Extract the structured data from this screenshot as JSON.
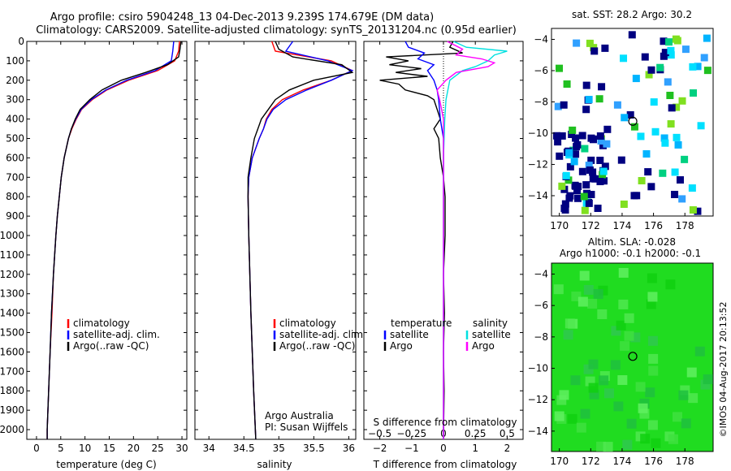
{
  "titles": {
    "line1": "Argo profile: csiro 5904248_13 04-Dec-2013 9.239S 174.679E (DM data)",
    "line2": "Climatology: CARS2009. Satellite-adjusted climatology: synTS_20131204.nc (0.95d earlier)"
  },
  "colors": {
    "climatology": "#ff0000",
    "satellite": "#0000ff",
    "argo": "#000000",
    "sat_s": "#00e0e0",
    "argo_s": "#ff00ff"
  },
  "chart_data": [
    {
      "type": "line",
      "name": "temperature",
      "xlabel": "temperature (deg C)",
      "xlim": [
        -2,
        31
      ],
      "ylim": [
        0,
        2050
      ],
      "xticks": [
        0,
        5,
        10,
        15,
        20,
        25,
        30
      ],
      "yticks": [
        0,
        100,
        200,
        300,
        400,
        500,
        600,
        700,
        800,
        900,
        1000,
        1100,
        1200,
        1300,
        1400,
        1500,
        1600,
        1700,
        1800,
        1900,
        2000
      ],
      "legend": [
        "climatology",
        "satellite-adj. clim.",
        "Argo(..raw -QC)"
      ],
      "series": [
        {
          "name": "climatology",
          "depth": [
            0,
            50,
            100,
            150,
            200,
            250,
            300,
            350,
            400,
            450,
            500,
            600,
            700,
            800,
            900,
            1000,
            1200,
            1400,
            1600,
            1800,
            2000,
            2050
          ],
          "values": [
            29.5,
            29.3,
            28.5,
            25,
            19,
            14.5,
            11.5,
            9.3,
            8.2,
            7.3,
            6.6,
            5.7,
            5.1,
            4.7,
            4.3,
            4.0,
            3.5,
            3.2,
            2.8,
            2.5,
            2.2,
            2.2
          ]
        },
        {
          "name": "satellite",
          "depth": [
            0,
            50,
            100,
            150,
            200,
            250,
            300,
            350,
            400,
            450,
            500,
            600,
            700,
            800,
            900,
            1000,
            1200,
            1400,
            1600,
            1800,
            2000,
            2050
          ],
          "values": [
            28.3,
            28.1,
            27.8,
            24.5,
            18.6,
            14.3,
            11.3,
            9.2,
            8.1,
            7.2,
            6.6,
            5.7,
            5.1,
            4.7,
            4.3,
            4.0,
            3.5,
            3.1,
            2.8,
            2.5,
            2.2,
            2.2
          ]
        },
        {
          "name": "Argo",
          "depth": [
            0,
            40,
            80,
            120,
            160,
            200,
            250,
            300,
            350,
            400,
            450,
            500,
            600,
            700,
            800,
            900,
            1000,
            1200,
            1400,
            1600,
            1800,
            2000,
            2050
          ],
          "values": [
            29.8,
            29.6,
            29.3,
            27,
            22.5,
            17.5,
            13.5,
            11.0,
            9.0,
            8.0,
            7.2,
            6.6,
            5.7,
            5.1,
            4.7,
            4.3,
            4.0,
            3.5,
            3.1,
            2.8,
            2.5,
            2.2,
            2.2
          ]
        }
      ]
    },
    {
      "type": "line",
      "name": "salinity",
      "xlabel": "salinity",
      "xlim": [
        33.8,
        36.1
      ],
      "ylim": [
        0,
        2050
      ],
      "xticks": [
        34,
        34.5,
        35,
        35.5,
        36
      ],
      "legend": [
        "climatology",
        "satellite-adj. clim.",
        "Argo(..raw -QC)"
      ],
      "series": [
        {
          "name": "climatology",
          "depth": [
            0,
            50,
            100,
            150,
            200,
            250,
            300,
            350,
            400,
            450,
            500,
            600,
            700,
            800,
            1000,
            1400,
            1800,
            2050
          ],
          "values": [
            34.9,
            34.95,
            35.75,
            36.05,
            35.75,
            35.35,
            35.05,
            34.9,
            34.82,
            34.78,
            34.72,
            34.62,
            34.57,
            34.56,
            34.57,
            34.6,
            34.64,
            34.67
          ]
        },
        {
          "name": "satellite",
          "depth": [
            0,
            50,
            100,
            150,
            200,
            250,
            300,
            350,
            400,
            450,
            500,
            600,
            700,
            800,
            1000,
            1400,
            1800,
            2050
          ],
          "values": [
            35.2,
            35.1,
            35.7,
            36.05,
            35.75,
            35.4,
            35.1,
            34.92,
            34.83,
            34.78,
            34.72,
            34.62,
            34.57,
            34.56,
            34.57,
            34.6,
            34.64,
            34.67
          ]
        },
        {
          "name": "Argo",
          "depth": [
            0,
            40,
            80,
            120,
            160,
            200,
            250,
            300,
            350,
            400,
            450,
            500,
            600,
            700,
            800,
            1000,
            1400,
            1800,
            2050
          ],
          "values": [
            34.95,
            35.0,
            35.2,
            35.9,
            36.05,
            35.5,
            35.15,
            34.95,
            34.85,
            34.75,
            34.7,
            34.65,
            34.6,
            34.56,
            34.56,
            34.57,
            34.6,
            34.64,
            34.67
          ]
        }
      ],
      "annotation": [
        "Argo Australia",
        "PI: Susan Wijffels"
      ]
    },
    {
      "type": "line",
      "name": "differences",
      "xlabel": "T difference from climatology",
      "xlabel_top": "S difference from climatology",
      "xlim": [
        -2.5,
        2.5
      ],
      "ylim": [
        0,
        2050
      ],
      "xticks_T": [
        -2,
        -1,
        0,
        1,
        2
      ],
      "xticks_S": [
        -0.5,
        -0.25,
        0,
        0.25,
        0.5
      ],
      "legend_T": {
        "title": "temperature",
        "items": [
          "satellite",
          "Argo"
        ]
      },
      "legend_S": {
        "title": "salinity",
        "items": [
          "satellite",
          "Argo"
        ]
      },
      "series": [
        {
          "name": "T satellite",
          "depth": [
            0,
            30,
            60,
            90,
            120,
            150,
            200,
            250,
            300,
            400,
            500,
            600,
            800,
            1200,
            1600,
            2050
          ],
          "values": [
            -1.2,
            -1.1,
            -0.6,
            -0.8,
            -0.3,
            -0.5,
            -0.3,
            -0.2,
            -0.15,
            -0.1,
            0,
            0,
            0,
            0,
            0,
            0
          ]
        },
        {
          "name": "T Argo",
          "depth": [
            0,
            30,
            60,
            80,
            100,
            120,
            140,
            160,
            180,
            200,
            220,
            250,
            280,
            300,
            350,
            400,
            450,
            500,
            600,
            700,
            800,
            1000,
            1200,
            1400,
            1600,
            1800,
            2050
          ],
          "values": [
            0.3,
            0.2,
            0.6,
            -1.8,
            -1.1,
            -1.7,
            -0.7,
            -1.5,
            -0.5,
            -2.0,
            -1.4,
            -1.2,
            -0.5,
            -0.3,
            -0.2,
            -0.1,
            -0.3,
            -0.15,
            -0.1,
            0,
            0.05,
            0.05,
            0,
            0.03,
            0,
            0.02,
            0
          ]
        },
        {
          "name": "S satellite",
          "depth": [
            0,
            30,
            50,
            70,
            100,
            130,
            150,
            200,
            300,
            400,
            600,
            1000,
            1600,
            2050
          ],
          "values": [
            0.08,
            0.18,
            0.5,
            0.4,
            0.35,
            0.25,
            0.15,
            0.05,
            0.02,
            0.01,
            0,
            0,
            0,
            0
          ]
        },
        {
          "name": "S Argo",
          "depth": [
            0,
            40,
            70,
            90,
            110,
            130,
            160,
            200,
            250,
            300,
            400,
            600,
            1000,
            1600,
            2050
          ],
          "values": [
            0.03,
            0.15,
            0.1,
            0.3,
            0.4,
            0.35,
            0.1,
            0.02,
            -0.05,
            -0.03,
            0,
            0,
            0,
            0,
            0
          ]
        }
      ]
    },
    {
      "type": "heatmap",
      "name": "sst-map",
      "title": "sat. SST: 28.2 Argo: 30.2",
      "xlim": [
        169.5,
        179.8
      ],
      "ylim": [
        -15.3,
        -3.3
      ],
      "xticks": [
        170,
        172,
        174,
        176,
        178
      ],
      "yticks": [
        -4,
        -6,
        -8,
        -10,
        -12,
        -14
      ],
      "point": [
        174.679,
        -9.239
      ]
    },
    {
      "type": "heatmap",
      "name": "sla-map",
      "title": "Altim. SLA: -0.028",
      "subtitle": "Argo h1000: -0.1 h2000: -0.1",
      "xlim": [
        169.5,
        179.8
      ],
      "ylim": [
        -15.3,
        -3.3
      ],
      "xticks": [
        170,
        172,
        174,
        176,
        178
      ],
      "yticks": [
        -4,
        -6,
        -8,
        -10,
        -12,
        -14
      ],
      "point": [
        174.679,
        -9.239
      ]
    }
  ],
  "credit": "©IMOS 04-Aug-2017 20:13:52"
}
